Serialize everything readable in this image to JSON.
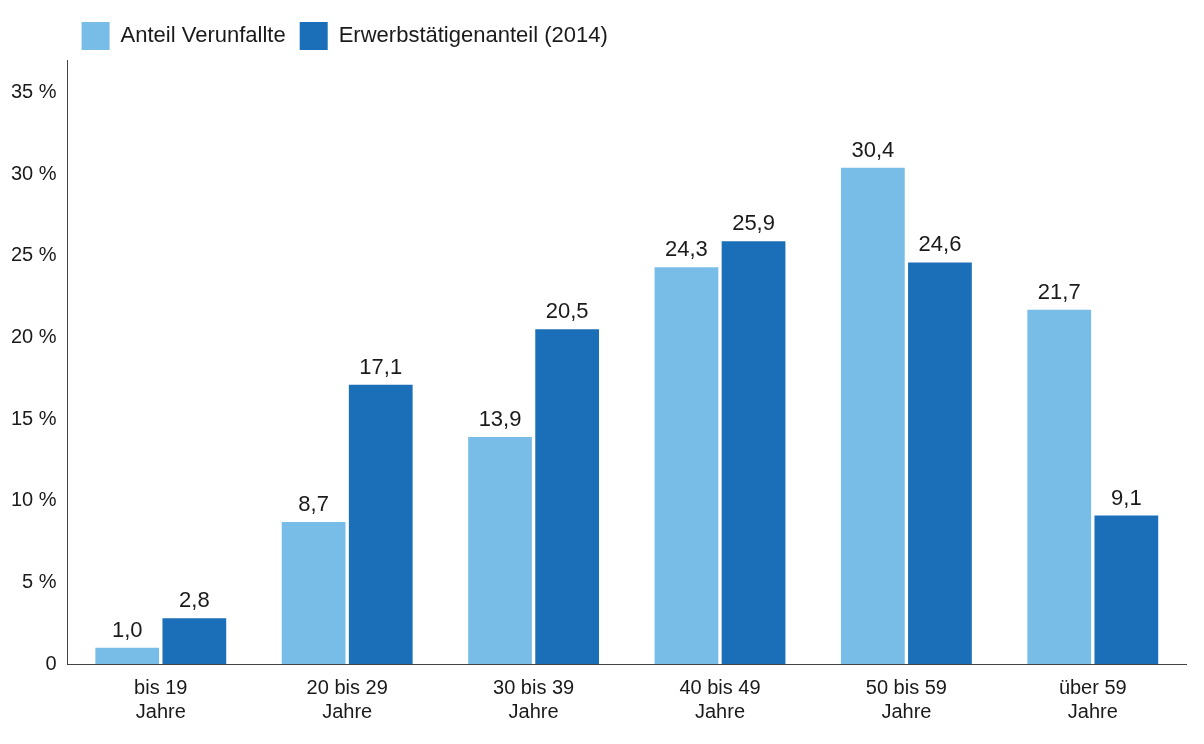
{
  "chart_data": {
    "type": "bar",
    "categories": [
      "bis 19 Jahre",
      "20 bis 29 Jahre",
      "30 bis 39 Jahre",
      "40 bis 49 Jahre",
      "50 bis 59 Jahre",
      "über 59 Jahre"
    ],
    "series": [
      {
        "name": "Anteil Verunfallte",
        "color": "#78bde8",
        "values": [
          1.0,
          8.7,
          13.9,
          24.3,
          30.4,
          21.7
        ],
        "value_labels": [
          "1,0",
          "8,7",
          "13,9",
          "24,3",
          "30,4",
          "21,7"
        ]
      },
      {
        "name": "Erwerbstätigenanteil (2014)",
        "color": "#1a6fb8",
        "values": [
          2.8,
          17.1,
          20.5,
          25.9,
          24.6,
          9.1
        ],
        "value_labels": [
          "2,8",
          "17,1",
          "20,5",
          "25,9",
          "24,6",
          "9,1"
        ]
      }
    ],
    "ylim": [
      0,
      37
    ],
    "yticks": [
      0,
      {
        "value": 5,
        "label": "5 %"
      },
      {
        "value": 10,
        "label": "10 %"
      },
      {
        "value": 15,
        "label": "15 %"
      },
      {
        "value": 20,
        "label": "20 %"
      },
      {
        "value": 25,
        "label": "25 %"
      },
      {
        "value": 30,
        "label": "30 %"
      },
      {
        "value": 35,
        "label": "35 %"
      }
    ],
    "grid": false,
    "legend": "top left"
  }
}
